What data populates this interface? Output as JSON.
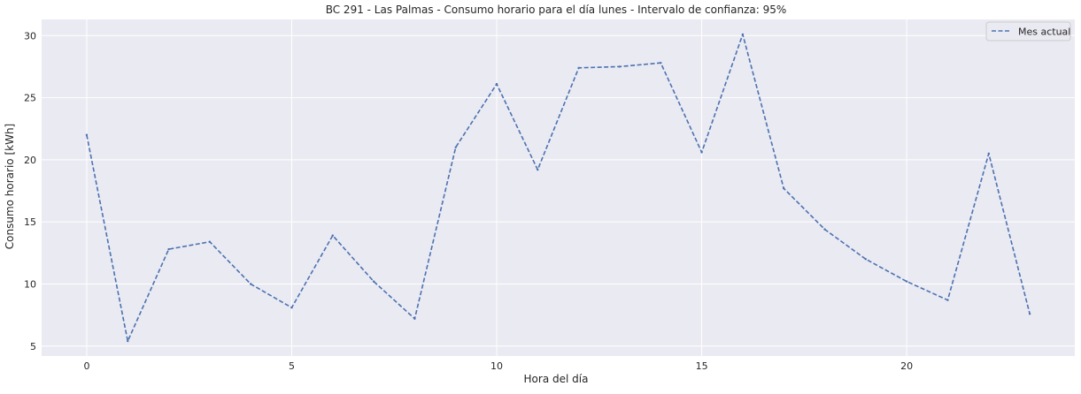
{
  "chart_data": {
    "type": "line",
    "title": "BC 291 - Las Palmas - Consumo horario para el día lunes - Intervalo de confianza: 95%",
    "xlabel": "Hora del día",
    "ylabel": "Consumo horario [kWh]",
    "xlim": [
      -1.1,
      24.1
    ],
    "ylim": [
      4.2,
      31.3
    ],
    "xticks": [
      0,
      5,
      10,
      15,
      20
    ],
    "yticks": [
      5,
      10,
      15,
      20,
      25,
      30
    ],
    "grid": true,
    "legend_position": "top-right",
    "colors": {
      "background": "#eaeaf2",
      "grid": "#ffffff",
      "line": "#4c72b0"
    },
    "series": [
      {
        "name": "Mes actual",
        "style": "dashed",
        "x": [
          0,
          1,
          2,
          3,
          4,
          5,
          6,
          7,
          8,
          9,
          10,
          11,
          12,
          13,
          14,
          15,
          16,
          17,
          18,
          19,
          20,
          21,
          22,
          23
        ],
        "y": [
          22.0,
          5.4,
          12.8,
          13.4,
          10.0,
          8.1,
          13.9,
          10.2,
          7.2,
          21.0,
          26.1,
          19.2,
          27.4,
          27.5,
          27.8,
          20.6,
          30.1,
          17.7,
          14.4,
          12.0,
          10.2,
          8.7,
          20.5,
          7.6
        ]
      }
    ]
  }
}
